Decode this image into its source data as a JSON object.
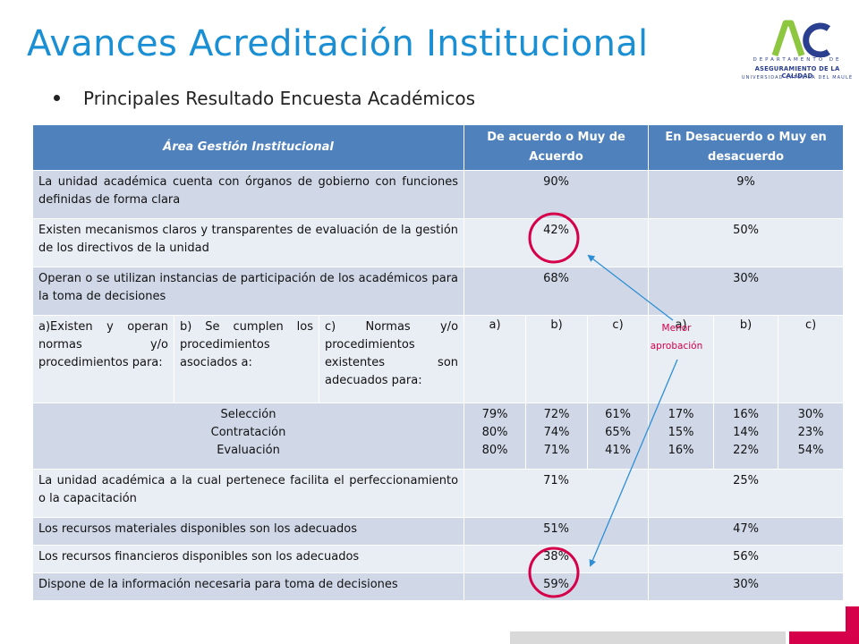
{
  "header": {
    "title": "Avances Acreditación Institucional",
    "bullet": "Principales Resultado Encuesta Académicos"
  },
  "logo": {
    "line1": "DEPARTAMENTO DE",
    "line2": "ASEGURAMIENTO DE LA CALIDAD",
    "line3": "UNIVERSIDAD CATÓLICA DEL MAULE",
    "colors": {
      "green": "#8dc63f",
      "blue": "#2a3f8f"
    }
  },
  "table": {
    "headers": {
      "area": "Área Gestión Institucional",
      "agree": "De acuerdo o Muy de Acuerdo",
      "disagree": "En Desacuerdo o Muy en desacuerdo"
    },
    "rows": [
      {
        "label": "La unidad académica cuenta con órganos de gobierno con funciones definidas de forma clara",
        "agree": "90%",
        "disagree": "9%"
      },
      {
        "label": "Existen mecanismos claros y transparentes de evaluación de la gestión de los directivos de la unidad",
        "agree": "42%",
        "disagree": "50%"
      },
      {
        "label": "Operan o se utilizan instancias de participación  de los académicos para la toma de decisiones",
        "agree": "68%",
        "disagree": "30%"
      }
    ],
    "sub_header": {
      "a": "a)Existen y operan normas y/o procedimientos para:",
      "b": "b) Se cumplen los procedimientos asociados a:",
      "c": "c) Normas y/o procedimientos existentes son adecuados para:",
      "letters": [
        "a)",
        "b)",
        "c)",
        "a)",
        "b)",
        "c)"
      ]
    },
    "multi_row": {
      "labels": [
        "Selección",
        "Contratación",
        "Evaluación"
      ],
      "agree_a": [
        "79%",
        "80%",
        "80%"
      ],
      "agree_b": [
        "72%",
        "74%",
        "71%"
      ],
      "agree_c": [
        "61%",
        "65%",
        "41%"
      ],
      "dis_a": [
        "17%",
        "15%",
        "16%"
      ],
      "dis_b": [
        "16%",
        "14%",
        "22%"
      ],
      "dis_c": [
        "30%",
        "23%",
        "54%"
      ]
    },
    "rows_after": [
      {
        "label": "La unidad académica a la cual pertenece facilita el perfeccionamiento o la capacitación",
        "agree": "71%",
        "disagree": "25%"
      },
      {
        "label": "Los recursos materiales disponibles son los adecuados",
        "agree": "51%",
        "disagree": "47%"
      },
      {
        "label": "Los recursos financieros disponibles son los adecuados",
        "agree": "38%",
        "disagree": "56%"
      },
      {
        "label": "Dispone de la información necesaria para toma de decisiones",
        "agree": "59%",
        "disagree": "30%"
      }
    ]
  },
  "annotation": {
    "text_line1": "Menor",
    "text_line2": "aprobación",
    "circle_color": "#d6004a",
    "arrow_color": "#2e8fd6"
  },
  "colors": {
    "title": "#1a8fd4",
    "header_bg": "#4f81bd",
    "row_dark": "#d0d8e8",
    "row_light": "#e9edf4",
    "accent": "#d6004a"
  }
}
